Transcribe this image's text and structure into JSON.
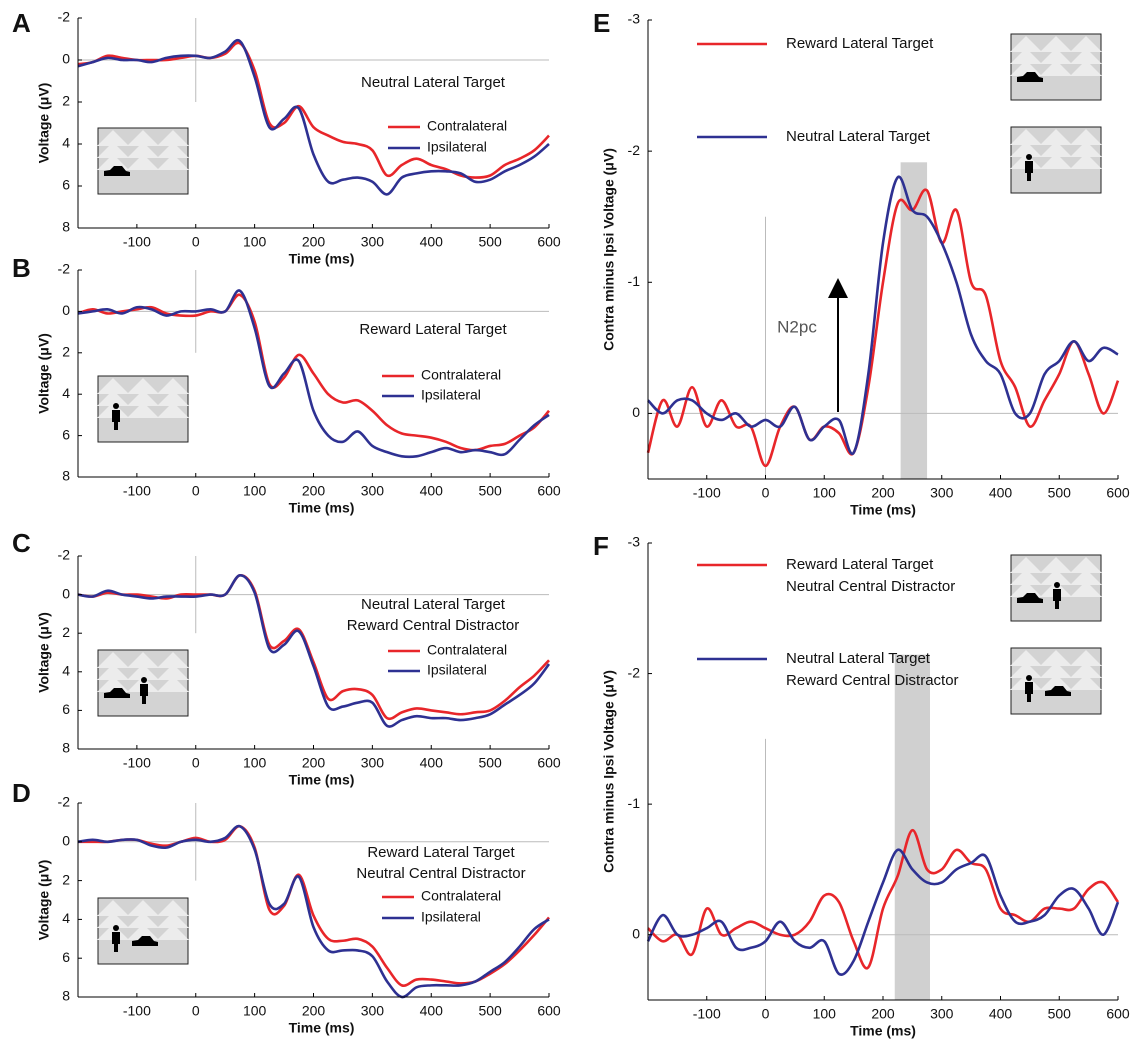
{
  "chart_data": [
    {
      "type": "line",
      "panel_label": "A",
      "title": "Neutral Lateral Target",
      "xlabel": "Time (ms)",
      "ylabel": "Voltage (μV)",
      "x": [
        -200,
        -175,
        -150,
        -125,
        -100,
        -75,
        -50,
        -25,
        0,
        25,
        50,
        75,
        100,
        125,
        150,
        175,
        200,
        225,
        250,
        275,
        300,
        325,
        350,
        375,
        400,
        425,
        450,
        475,
        500,
        525,
        550,
        575,
        600
      ],
      "xlim": [
        -200,
        600
      ],
      "xticks": [
        -100,
        0,
        100,
        200,
        300,
        400,
        500,
        600
      ],
      "ylim": [
        -2,
        8
      ],
      "yticks": [
        -2,
        0,
        2,
        4,
        6,
        8
      ],
      "y_inverted": true,
      "series": [
        {
          "name": "Contralateral",
          "color": "#e8262a",
          "values": [
            0.2,
            0.1,
            -0.2,
            -0.1,
            0,
            0,
            0,
            -0.1,
            -0.2,
            -0.1,
            -0.3,
            -0.8,
            0.5,
            3.0,
            3.0,
            2.2,
            3.2,
            3.6,
            3.9,
            4.0,
            4.3,
            5.5,
            5.0,
            4.7,
            5.0,
            5.2,
            5.5,
            5.6,
            5.5,
            5.0,
            4.7,
            4.3,
            3.6
          ]
        },
        {
          "name": "Ipsilateral",
          "color": "#2e3192",
          "values": [
            0.3,
            0.1,
            -0.1,
            0,
            0,
            0.1,
            -0.1,
            -0.2,
            -0.2,
            -0.1,
            -0.4,
            -0.9,
            0.8,
            3.2,
            2.8,
            2.3,
            4.5,
            5.8,
            5.7,
            5.6,
            5.8,
            6.4,
            5.6,
            5.4,
            5.3,
            5.3,
            5.4,
            5.8,
            5.7,
            5.3,
            5.0,
            4.6,
            4.0
          ]
        }
      ]
    },
    {
      "type": "line",
      "panel_label": "B",
      "title": "Reward Lateral Target",
      "xlabel": "Time (ms)",
      "ylabel": "Voltage (μV)",
      "x": [
        -200,
        -175,
        -150,
        -125,
        -100,
        -75,
        -50,
        -25,
        0,
        25,
        50,
        75,
        100,
        125,
        150,
        175,
        200,
        225,
        250,
        275,
        300,
        325,
        350,
        375,
        400,
        425,
        450,
        475,
        500,
        525,
        550,
        575,
        600
      ],
      "xlim": [
        -200,
        600
      ],
      "xticks": [
        -100,
        0,
        100,
        200,
        300,
        400,
        500,
        600
      ],
      "ylim": [
        -2,
        8
      ],
      "yticks": [
        -2,
        0,
        2,
        4,
        6,
        8
      ],
      "y_inverted": true,
      "series": [
        {
          "name": "Contralateral",
          "color": "#e8262a",
          "values": [
            0.1,
            -0.1,
            0.1,
            0,
            -0.1,
            -0.2,
            0.1,
            0.2,
            0.2,
            0,
            0,
            -0.8,
            0.5,
            3.5,
            3.2,
            2.1,
            3.0,
            4.0,
            4.4,
            4.3,
            4.8,
            5.5,
            5.9,
            6.0,
            6.1,
            6.3,
            6.6,
            6.7,
            6.5,
            6.4,
            6.0,
            5.6,
            4.8
          ]
        },
        {
          "name": "Ipsilateral",
          "color": "#2e3192",
          "values": [
            0.1,
            0,
            -0.1,
            0.1,
            -0.2,
            -0.1,
            0.2,
            0,
            0,
            -0.1,
            0,
            -1.0,
            0.8,
            3.6,
            3.0,
            2.4,
            4.8,
            6.0,
            6.3,
            5.8,
            6.5,
            6.8,
            7.0,
            7.0,
            6.8,
            6.6,
            6.8,
            6.7,
            6.8,
            6.9,
            6.2,
            5.5,
            5.0
          ]
        }
      ]
    },
    {
      "type": "line",
      "panel_label": "C",
      "title": "Neutral Lateral Target\nReward Central Distractor",
      "xlabel": "Time (ms)",
      "ylabel": "Voltage (μV)",
      "x": [
        -200,
        -175,
        -150,
        -125,
        -100,
        -75,
        -50,
        -25,
        0,
        25,
        50,
        75,
        100,
        125,
        150,
        175,
        200,
        225,
        250,
        275,
        300,
        325,
        350,
        375,
        400,
        425,
        450,
        475,
        500,
        525,
        550,
        575,
        600
      ],
      "xlim": [
        -200,
        600
      ],
      "xticks": [
        -100,
        0,
        100,
        200,
        300,
        400,
        500,
        600
      ],
      "ylim": [
        -2,
        8
      ],
      "yticks": [
        -2,
        0,
        2,
        4,
        6,
        8
      ],
      "y_inverted": true,
      "series": [
        {
          "name": "Contralateral",
          "color": "#e8262a",
          "values": [
            0,
            0.1,
            -0.1,
            0,
            0,
            0.1,
            0.2,
            0,
            0,
            0,
            0,
            -1.0,
            -0.2,
            2.6,
            2.4,
            1.8,
            3.5,
            5.4,
            5.0,
            4.9,
            5.2,
            6.4,
            6.1,
            5.9,
            6.0,
            6.1,
            6.2,
            6.1,
            6.0,
            5.5,
            4.8,
            4.2,
            3.4
          ]
        },
        {
          "name": "Ipsilateral",
          "color": "#2e3192",
          "values": [
            0,
            0.1,
            -0.2,
            0,
            0.1,
            0.2,
            0.1,
            0.1,
            0.1,
            0,
            0,
            -1.0,
            -0.1,
            2.8,
            2.6,
            1.9,
            3.7,
            5.8,
            5.8,
            5.6,
            5.6,
            6.8,
            6.5,
            6.3,
            6.4,
            6.4,
            6.5,
            6.4,
            6.2,
            5.7,
            5.2,
            4.6,
            3.6
          ]
        }
      ]
    },
    {
      "type": "line",
      "panel_label": "D",
      "title": "Reward Lateral Target\nNeutral Central Distractor",
      "xlabel": "Time (ms)",
      "ylabel": "Voltage (μV)",
      "x": [
        -200,
        -175,
        -150,
        -125,
        -100,
        -75,
        -50,
        -25,
        0,
        25,
        50,
        75,
        100,
        125,
        150,
        175,
        200,
        225,
        250,
        275,
        300,
        325,
        350,
        375,
        400,
        425,
        450,
        475,
        500,
        525,
        550,
        575,
        600
      ],
      "xlim": [
        -200,
        600
      ],
      "xticks": [
        -100,
        0,
        100,
        200,
        300,
        400,
        500,
        600
      ],
      "ylim": [
        -2,
        8
      ],
      "yticks": [
        -2,
        0,
        2,
        4,
        6,
        8
      ],
      "y_inverted": true,
      "series": [
        {
          "name": "Contralateral",
          "color": "#e8262a",
          "values": [
            0,
            0,
            0,
            -0.1,
            -0.1,
            0.1,
            0.2,
            0,
            -0.2,
            0,
            -0.1,
            -0.8,
            0.3,
            3.5,
            3.3,
            1.7,
            3.8,
            5.0,
            5.1,
            5.0,
            5.4,
            6.5,
            7.4,
            7.1,
            7.1,
            7.2,
            7.3,
            7.2,
            6.8,
            6.3,
            5.6,
            4.8,
            3.9
          ]
        },
        {
          "name": "Ipsilateral",
          "color": "#2e3192",
          "values": [
            0,
            -0.1,
            0,
            -0.1,
            -0.1,
            0.2,
            0.3,
            0,
            -0.1,
            0,
            -0.2,
            -0.8,
            0.4,
            3.2,
            3.2,
            1.8,
            4.4,
            5.6,
            5.6,
            5.6,
            5.9,
            7.2,
            8.0,
            7.5,
            7.4,
            7.4,
            7.4,
            7.2,
            6.7,
            6.2,
            5.4,
            4.5,
            4.0
          ]
        }
      ]
    },
    {
      "type": "line",
      "panel_label": "E",
      "xlabel": "Time (ms)",
      "ylabel": "Contra minus Ipsi Voltage (μV)",
      "annotation": "N2pc",
      "x": [
        -200,
        -175,
        -150,
        -125,
        -100,
        -75,
        -50,
        -25,
        0,
        25,
        50,
        75,
        100,
        125,
        150,
        175,
        200,
        225,
        250,
        275,
        300,
        325,
        350,
        375,
        400,
        425,
        450,
        475,
        500,
        525,
        550,
        575,
        600
      ],
      "xlim": [
        -200,
        600
      ],
      "xticks": [
        -100,
        0,
        100,
        200,
        300,
        400,
        500,
        600
      ],
      "ylim": [
        -3,
        0.5
      ],
      "yticks": [
        -3,
        -2,
        -1,
        0
      ],
      "y_inverted": true,
      "highlight": [
        230,
        275
      ],
      "series": [
        {
          "name": "Reward Lateral Target",
          "color": "#e8262a",
          "values": [
            0.3,
            -0.1,
            0.1,
            -0.2,
            0.1,
            -0.1,
            0.1,
            0.1,
            0.4,
            0.1,
            -0.05,
            0.2,
            0.1,
            0.15,
            0.3,
            -0.2,
            -1.0,
            -1.6,
            -1.55,
            -1.7,
            -1.3,
            -1.55,
            -1.0,
            -0.9,
            -0.4,
            -0.2,
            0.1,
            -0.1,
            -0.3,
            -0.55,
            -0.3,
            0.0,
            -0.25
          ]
        },
        {
          "name": "Neutral Lateral Target",
          "color": "#2e3192",
          "values": [
            -0.1,
            0,
            -0.1,
            -0.1,
            0,
            0.05,
            0,
            0.1,
            0.05,
            0.1,
            -0.05,
            0.2,
            0.1,
            0.05,
            0.3,
            -0.3,
            -1.3,
            -1.8,
            -1.55,
            -1.5,
            -1.3,
            -1.0,
            -0.6,
            -0.4,
            -0.3,
            0,
            0,
            -0.3,
            -0.4,
            -0.55,
            -0.4,
            -0.5,
            -0.45
          ]
        }
      ]
    },
    {
      "type": "line",
      "panel_label": "F",
      "xlabel": "Time (ms)",
      "ylabel": "Contra minus Ipsi Voltage (μV)",
      "x": [
        -200,
        -175,
        -150,
        -125,
        -100,
        -75,
        -50,
        -25,
        0,
        25,
        50,
        75,
        100,
        125,
        150,
        175,
        200,
        225,
        250,
        275,
        300,
        325,
        350,
        375,
        400,
        425,
        450,
        475,
        500,
        525,
        550,
        575,
        600
      ],
      "xlim": [
        -200,
        600
      ],
      "xticks": [
        -100,
        0,
        100,
        200,
        300,
        400,
        500,
        600
      ],
      "ylim": [
        -3,
        0.5
      ],
      "yticks": [
        -3,
        -2,
        -1,
        0
      ],
      "y_inverted": true,
      "highlight": [
        220,
        280
      ],
      "series": [
        {
          "name": "Reward Lateral Target\nNeutral Central Distractor",
          "color": "#e8262a",
          "values": [
            -0.05,
            0.05,
            0,
            0.15,
            -0.2,
            0,
            -0.05,
            -0.1,
            -0.05,
            0,
            0,
            -0.1,
            -0.3,
            -0.25,
            0.05,
            0.25,
            -0.2,
            -0.45,
            -0.8,
            -0.5,
            -0.5,
            -0.65,
            -0.55,
            -0.5,
            -0.2,
            -0.15,
            -0.1,
            -0.2,
            -0.2,
            -0.2,
            -0.35,
            -0.4,
            -0.25
          ]
        },
        {
          "name": "Neutral Lateral Target\nReward Central Distractor",
          "color": "#2e3192",
          "values": [
            0.05,
            -0.15,
            0,
            0,
            -0.05,
            -0.1,
            0.1,
            0.1,
            0.05,
            -0.1,
            0.05,
            0.1,
            0.05,
            0.3,
            0.2,
            -0.1,
            -0.4,
            -0.65,
            -0.5,
            -0.4,
            -0.4,
            -0.5,
            -0.55,
            -0.6,
            -0.3,
            -0.1,
            -0.1,
            -0.15,
            -0.3,
            -0.35,
            -0.2,
            0,
            -0.25
          ]
        }
      ]
    }
  ]
}
